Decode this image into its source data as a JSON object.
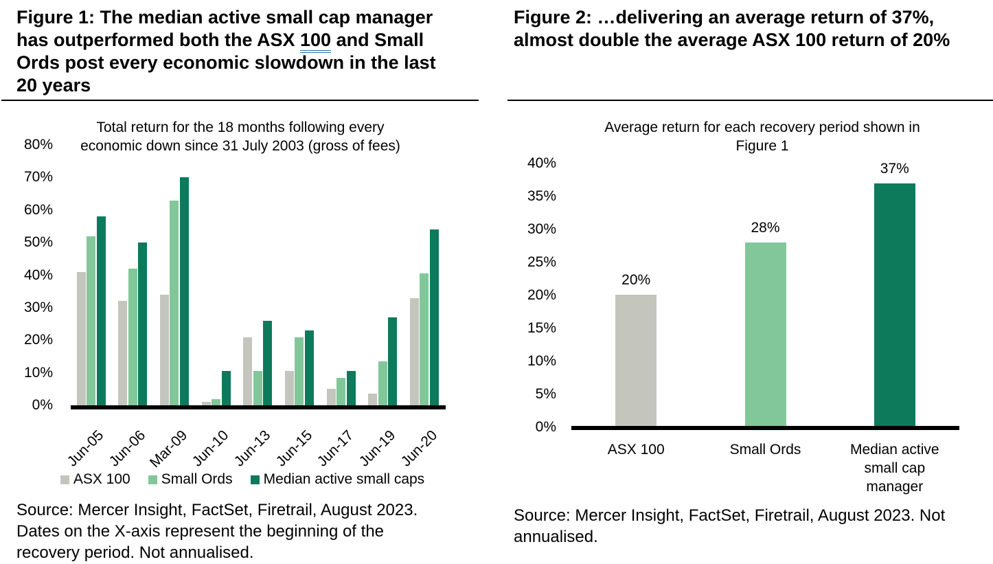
{
  "accent_colors": {
    "underline_blue": "#2e74b5",
    "axis_black": "#000000",
    "gray_series": "#c4c5bd",
    "light_green_series": "#82c79a",
    "dark_green_series": "#0d7a5c"
  },
  "figure1": {
    "title": {
      "before": "Figure 1: The median active small cap manager\nhas outperformed both the ASX ",
      "underlined": "100",
      "after": " and Small\nOrds post every economic slowdown in the last\n20 years"
    },
    "source": "Source: Mercer Insight, FactSet, Firetrail, August 2023.\nDates on the X-axis represent the beginning of the\nrecovery period. Not annualised."
  },
  "figure2": {
    "title": "Figure 2: …delivering an average return of 37%,\nalmost double the average ASX 100 return of 20%",
    "source": "Source: Mercer Insight, FactSet, Firetrail, August 2023. Not\nannualised."
  },
  "chart_data": [
    {
      "type": "bar",
      "title": "Total return for the 18 months following every\neconomic down since 31 July 2003 (gross of fees)",
      "categories": [
        "Jun-05",
        "Jun-06",
        "Mar-09",
        "Jun-10",
        "Jun-13",
        "Jun-15",
        "Jun-17",
        "Jun-19",
        "Jun-20"
      ],
      "series": [
        {
          "name": "ASX 100",
          "color": "#c4c5bd",
          "values": [
            41,
            32,
            34,
            1,
            21,
            10.5,
            5,
            3.5,
            33
          ]
        },
        {
          "name": "Small Ords",
          "color": "#82c79a",
          "values": [
            52,
            42,
            63,
            2,
            10.5,
            21,
            8.5,
            13.5,
            40.5
          ]
        },
        {
          "name": "Median active small caps",
          "color": "#0d7a5c",
          "values": [
            58,
            50,
            70,
            10.5,
            26,
            23,
            10.5,
            27,
            54
          ]
        }
      ],
      "ylim": [
        0,
        80
      ],
      "ytick_step": 10,
      "yticks": [
        "80%",
        "70%",
        "60%",
        "50%",
        "40%",
        "30%",
        "20%",
        "10%",
        "0%"
      ],
      "grid": false,
      "legend_position": "bottom",
      "x_tick_rotation": -45
    },
    {
      "type": "bar",
      "title": "Average return for each recovery period shown in\nFigure 1",
      "categories": [
        "ASX 100",
        "Small Ords",
        "Median active\nsmall cap\nmanager"
      ],
      "values": [
        20,
        28,
        37
      ],
      "bar_labels": [
        "20%",
        "28%",
        "37%"
      ],
      "colors": [
        "#c4c5bd",
        "#82c79a",
        "#0d7a5c"
      ],
      "ylim": [
        0,
        40
      ],
      "ytick_step": 5,
      "yticks": [
        "40%",
        "35%",
        "30%",
        "25%",
        "20%",
        "15%",
        "10%",
        "5%",
        "0%"
      ],
      "grid": false,
      "legend_position": "none"
    }
  ]
}
